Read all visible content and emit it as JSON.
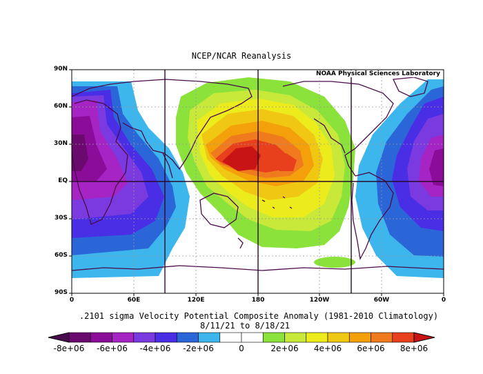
{
  "title": "NCEP/NCAR Reanalysis",
  "credit": "NOAA Physical Sciences Laboratory",
  "lat_labels": [
    "90N",
    "60N",
    "30N",
    "EQ",
    "30S",
    "60S",
    "90S"
  ],
  "lon_labels": [
    "0",
    "60E",
    "120E",
    "180",
    "120W",
    "60W",
    "0"
  ],
  "caption_line1": ".2101 sigma Velocity Potential   Composite Anomaly (1981-2010 Climatology)",
  "caption_line2": "8/11/21   to 8/18/21",
  "colorbar": {
    "labels": [
      "-8e+06",
      "-6e+06",
      "-4e+06",
      "-2e+06",
      "0",
      "2e+06",
      "4e+06",
      "6e+06",
      "8e+06"
    ],
    "colors": [
      "#6a0a6e",
      "#8c0c9a",
      "#a624c4",
      "#7a3ae0",
      "#4a2ee6",
      "#2a66d8",
      "#3cb6ec",
      "#ffffff",
      "#ffffff",
      "#8ae23a",
      "#c8e83a",
      "#ecec1c",
      "#f0c814",
      "#f4a00a",
      "#f07a1e",
      "#e8401c"
    ]
  },
  "map_colors": {
    "green": "#8ae23a",
    "lime": "#c8e83a",
    "yellow": "#ecec1c",
    "gold": "#f0c814",
    "orange": "#f4a00a",
    "darkorange": "#f07a1e",
    "red": "#e8401c",
    "darkred": "#c81414",
    "cyan": "#3cb6ec",
    "blue": "#2a66d8",
    "indigo": "#4a2ee6",
    "violet": "#7a3ae0",
    "purple": "#a624c4",
    "magenta": "#8c0c9a",
    "deeppurple": "#6a0a6e",
    "coast": "#4a0a4a"
  }
}
